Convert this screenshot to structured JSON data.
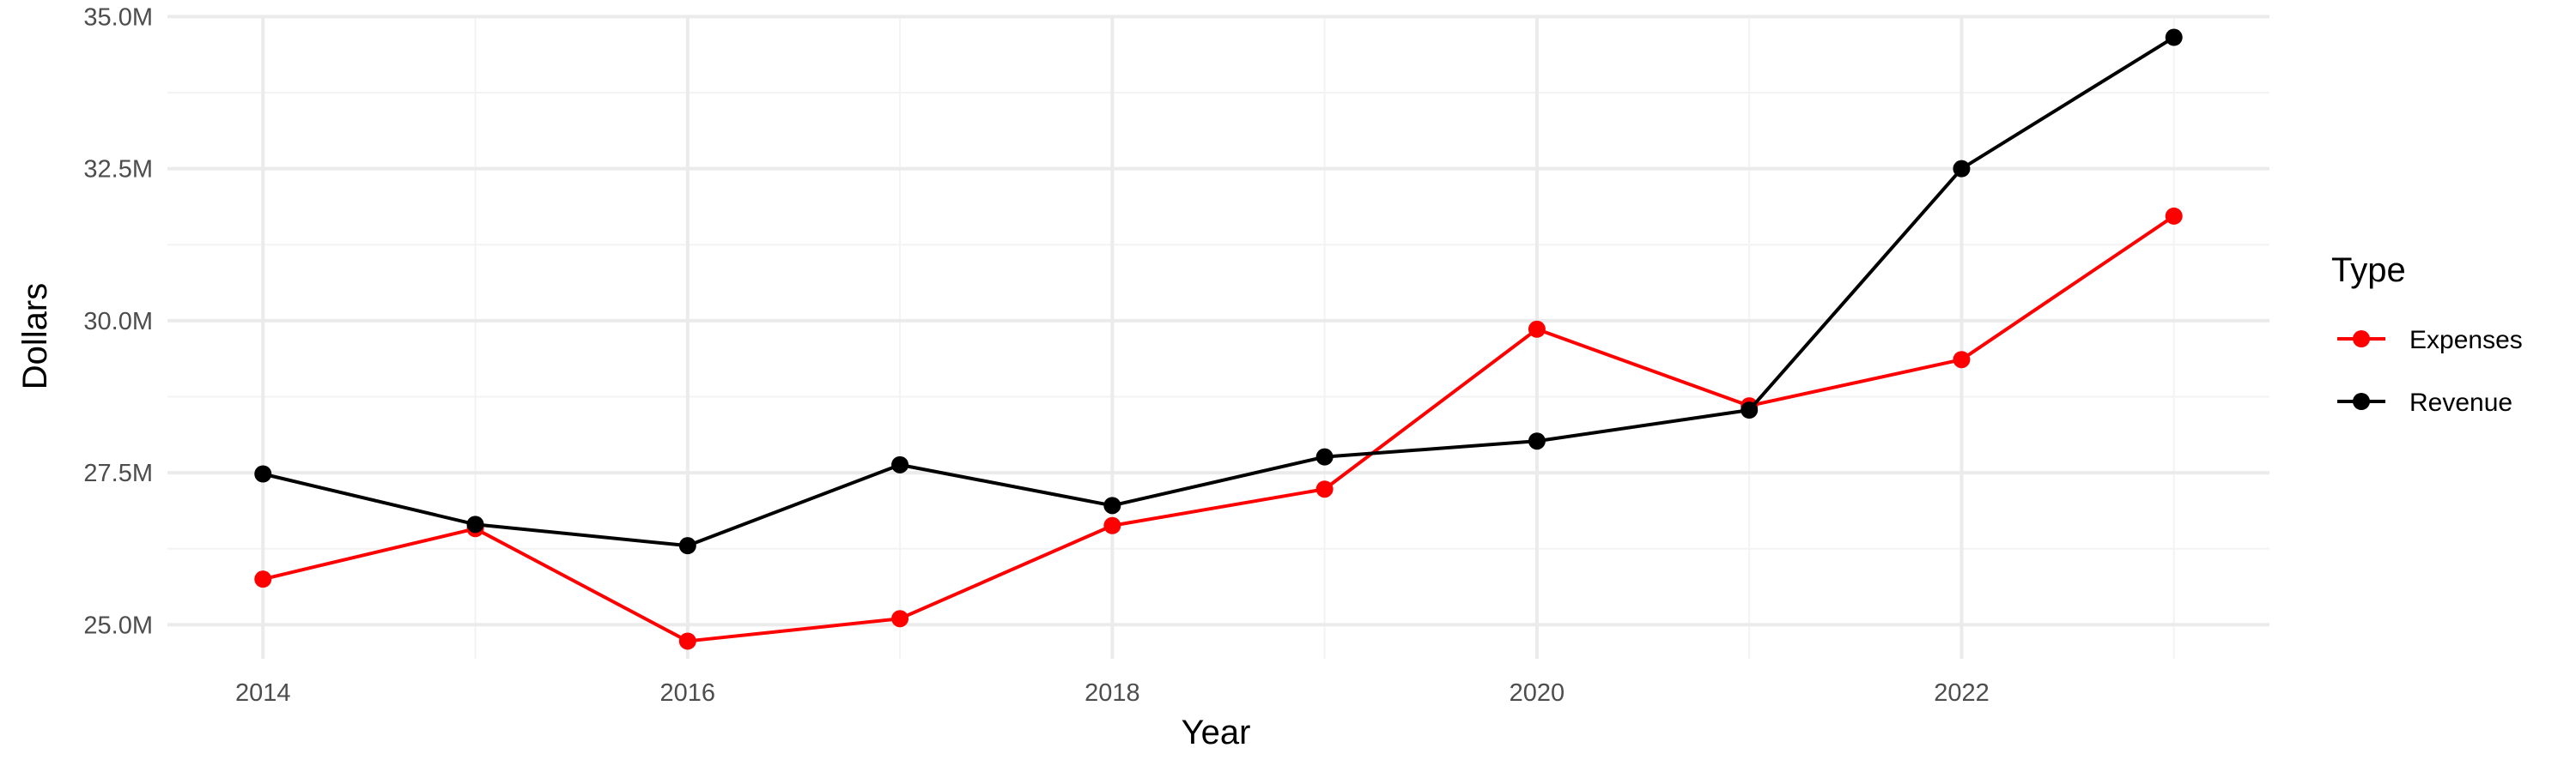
{
  "chart_data": {
    "type": "line",
    "title": "",
    "xlabel": "Year",
    "ylabel": "Dollars",
    "x": [
      2014,
      2015,
      2016,
      2017,
      2018,
      2019,
      2020,
      2021,
      2022,
      2023
    ],
    "xlim": [
      2013.55,
      2023.45
    ],
    "ylim": [
      24.44,
      35.02
    ],
    "x_ticks": [
      2014,
      2016,
      2018,
      2020,
      2022
    ],
    "x_tick_labels": [
      "2014",
      "2016",
      "2018",
      "2020",
      "2022"
    ],
    "y_ticks": [
      25.0,
      27.5,
      30.0,
      32.5,
      35.0
    ],
    "y_tick_labels": [
      "25.0M",
      "27.5M",
      "30.0M",
      "32.5M",
      "35.0M"
    ],
    "y_unit": "millions of dollars",
    "grid": true,
    "legend": {
      "title": "Type",
      "position": "right"
    },
    "series": [
      {
        "name": "Expenses",
        "color": "#ff0000",
        "values": [
          25.75,
          26.58,
          24.73,
          25.1,
          26.63,
          27.23,
          29.86,
          28.6,
          29.36,
          31.72
        ]
      },
      {
        "name": "Revenue",
        "color": "#000000",
        "values": [
          27.48,
          26.65,
          26.3,
          27.63,
          26.96,
          27.76,
          28.02,
          28.53,
          32.5,
          34.66
        ]
      }
    ]
  }
}
